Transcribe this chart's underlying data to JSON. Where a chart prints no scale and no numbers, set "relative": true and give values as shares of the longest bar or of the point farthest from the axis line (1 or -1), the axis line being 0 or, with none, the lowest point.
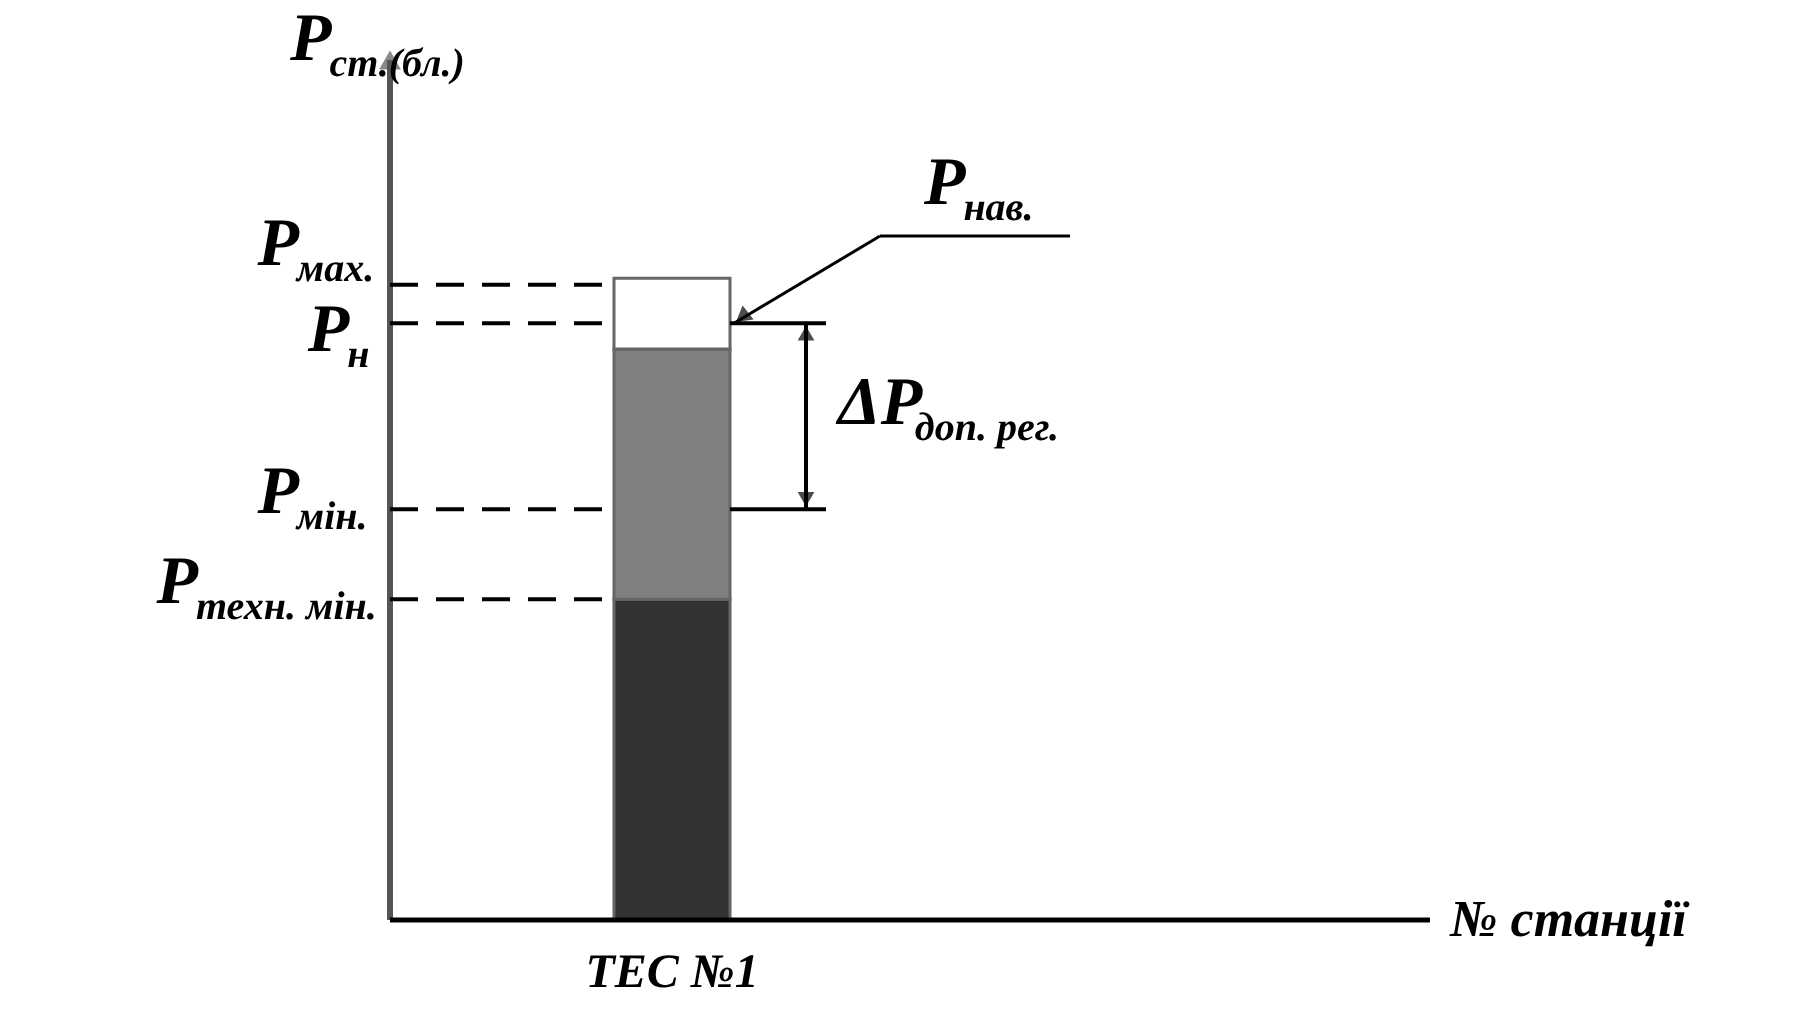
{
  "chart_data": {
    "type": "bar",
    "stacked": true,
    "relative": true,
    "categories": [
      "ТЕС №1"
    ],
    "series": [
      {
        "color": "#333333",
        "values": [
          0.5
        ]
      },
      {
        "color": "#808080",
        "values": [
          0.39
        ]
      },
      {
        "color": "#ffffff",
        "values": [
          0.11
        ]
      }
    ],
    "ylabel": "P$_{ст.(бл.)}$",
    "ref_lines": [
      {
        "axis": "y",
        "value": 0.99,
        "label": "P$_{мах.}$",
        "line_style": "dashed"
      },
      {
        "axis": "y",
        "value": 0.93,
        "label": "P$_{н}$",
        "line_style": "dashed"
      },
      {
        "axis": "y",
        "value": 0.64,
        "label": "P$_{мін.}$",
        "line_style": "dashed"
      },
      {
        "axis": "y",
        "value": 0.5,
        "label": "P$_{техн. мін.}$",
        "line_style": "dashed"
      }
    ],
    "annotations": [
      "P$_{нав.}$",
      "ΔP$_{доп. рег.}$",
      "№ станції"
    ],
    "grid": false,
    "legend": false
  }
}
